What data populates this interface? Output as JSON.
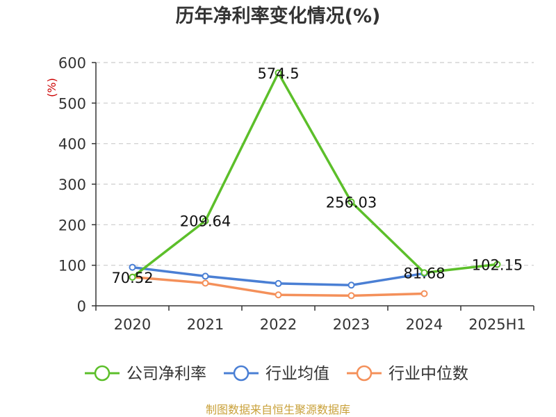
{
  "chart_data": {
    "type": "line",
    "title": "历年净利率变化情况(%)",
    "ylabel": "(%)",
    "xlabel": "",
    "categories": [
      "2020",
      "2021",
      "2022",
      "2023",
      "2024",
      "2025H1"
    ],
    "ylim": [
      0,
      600
    ],
    "yticks": [
      0,
      100,
      200,
      300,
      400,
      500,
      600
    ],
    "grid": true,
    "legend_position": "bottom",
    "series": [
      {
        "name": "公司净利率",
        "color": "#5cbf2a",
        "values": [
          70.52,
          209.64,
          574.5,
          256.03,
          81.68,
          102.15
        ],
        "labels": [
          "70.52",
          "209.64",
          "574.5",
          "256.03",
          "81.68",
          "102.15"
        ]
      },
      {
        "name": "行业均值",
        "color": "#4a7fd4",
        "values": [
          95,
          73,
          55,
          51,
          80,
          null
        ]
      },
      {
        "name": "行业中位数",
        "color": "#f4905a",
        "values": [
          71,
          56,
          27,
          25,
          30,
          null
        ]
      }
    ]
  },
  "footer": {
    "source": "制图数据来自恒生聚源数据库"
  }
}
